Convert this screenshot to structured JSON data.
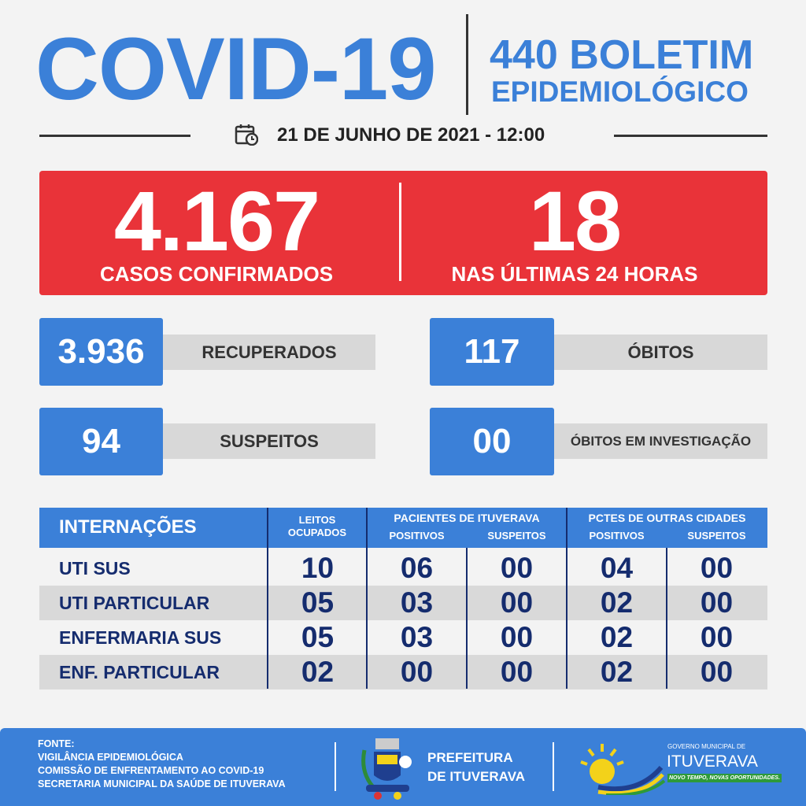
{
  "header": {
    "title": "COVID-19",
    "bulletin_line1": "440 BOLETIM",
    "bulletin_line2": "EPIDEMIOLÓGICO",
    "date": "21 DE JUNHO DE 2021 - 12:00",
    "calendar_icon": "calendar-clock-icon"
  },
  "totals": {
    "confirmed": "4.167",
    "confirmed_label": "CASOS CONFIRMADOS",
    "last24": "18",
    "last24_label": "NAS ÚLTIMAS 24 HORAS"
  },
  "stats": [
    {
      "value": "3.936",
      "label": "RECUPERADOS"
    },
    {
      "value": "117",
      "label": "ÓBITOS"
    },
    {
      "value": "94",
      "label": "SUSPEITOS"
    },
    {
      "value": "00",
      "label": "ÓBITOS EM INVESTIGAÇÃO"
    }
  ],
  "table": {
    "title": "INTERNAÇÕES",
    "leitos": [
      "LEITOS",
      "OCUPADOS"
    ],
    "group1": "PACIENTES DE ITUVERAVA",
    "group2": "PCTES DE OUTRAS CIDADES",
    "positivos": "POSITIVOS",
    "suspeitos": "SUSPEITOS",
    "rows": [
      {
        "label": "UTI SUS",
        "values": [
          "10",
          "06",
          "00",
          "04",
          "00"
        ]
      },
      {
        "label": "UTI PARTICULAR",
        "values": [
          "05",
          "03",
          "00",
          "02",
          "00"
        ]
      },
      {
        "label": "ENFERMARIA SUS",
        "values": [
          "05",
          "03",
          "00",
          "02",
          "00"
        ]
      },
      {
        "label": "ENF. PARTICULAR",
        "values": [
          "02",
          "00",
          "00",
          "02",
          "00"
        ]
      }
    ]
  },
  "footer": {
    "source_title": "FONTE:",
    "sources": [
      "VIGILÂNCIA EPIDEMIOLÓGICA",
      "COMISSÃO DE ENFRENTAMENTO AO COVID-19",
      "SECRETARIA MUNICIPAL DA SAÚDE DE ITUVERAVA"
    ],
    "prefeitura": [
      "PREFEITURA",
      "DE ITUVERAVA"
    ],
    "gov_line1": "GOVERNO MUNICIPAL DE",
    "gov_line2": "ITUVERAVA",
    "gov_slogan": "NOVO TEMPO, NOVAS OPORTUNIDADES."
  },
  "colors": {
    "blue": "#3b80d8",
    "red": "#e93339",
    "navy": "#152c6e",
    "grey": "#d8d8d8"
  }
}
